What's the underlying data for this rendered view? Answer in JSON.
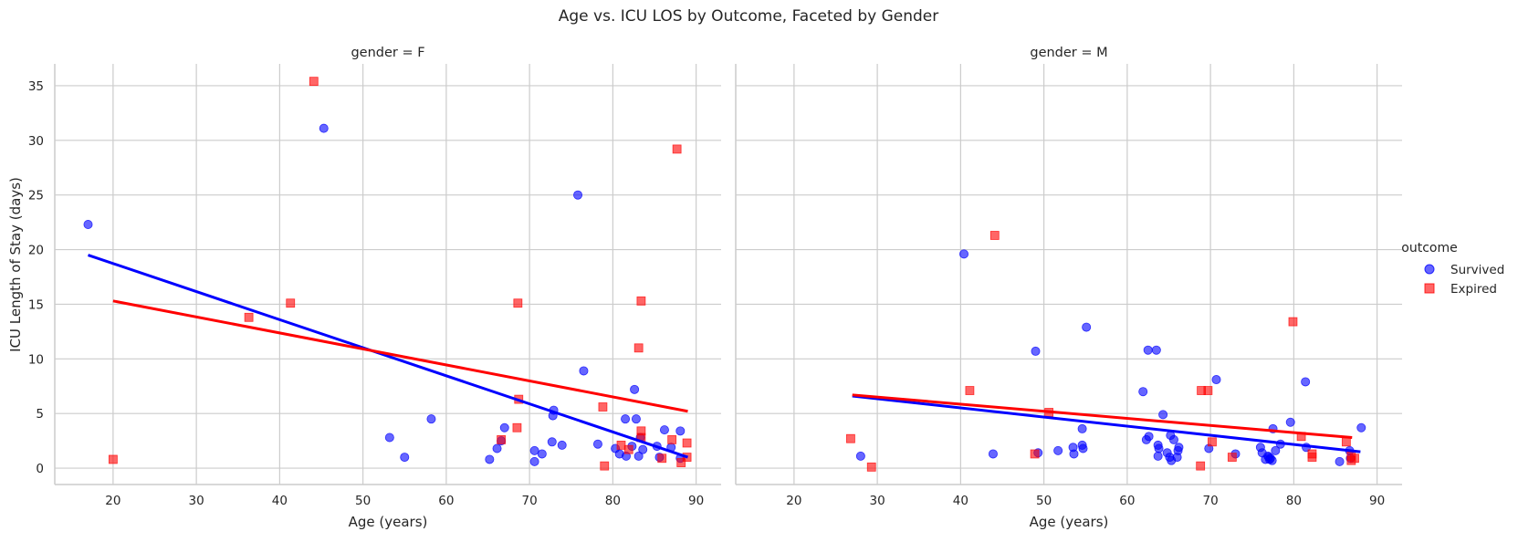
{
  "title": "Age vs. ICU LOS by Outcome, Faceted by Gender",
  "ylabel": "ICU Length of Stay (days)",
  "legend": {
    "title": "outcome",
    "entries": [
      {
        "label": "Survived",
        "color": "#0000ff",
        "marker": "circle"
      },
      {
        "label": "Expired",
        "color": "#ff0000",
        "marker": "square"
      }
    ]
  },
  "colors": {
    "survived": "#0000ff",
    "expired": "#ff0000",
    "grid": "#cccccc",
    "axis": "#cccccc"
  },
  "chart_data": [
    {
      "type": "scatter",
      "title": "gender = F",
      "xlabel": "Age (years)",
      "xlim": [
        13,
        93
      ],
      "ylim": [
        -1.5,
        37
      ],
      "xticks": [
        20,
        30,
        40,
        50,
        60,
        70,
        80,
        90
      ],
      "yticks": [
        0,
        5,
        10,
        15,
        20,
        25,
        30,
        35
      ],
      "grid": true,
      "series": [
        {
          "name": "Survived",
          "points": [
            [
              17,
              22.3
            ],
            [
              45.3,
              31.1
            ],
            [
              53.2,
              2.8
            ],
            [
              55,
              1
            ],
            [
              58.2,
              4.5
            ],
            [
              65.2,
              0.8
            ],
            [
              66.1,
              1.8
            ],
            [
              66.6,
              2.5
            ],
            [
              67,
              3.7
            ],
            [
              70.6,
              1.6
            ],
            [
              70.6,
              0.6
            ],
            [
              71.5,
              1.3
            ],
            [
              72.7,
              2.4
            ],
            [
              72.8,
              4.8
            ],
            [
              72.9,
              5.3
            ],
            [
              73.9,
              2.1
            ],
            [
              75.8,
              25
            ],
            [
              76.5,
              8.9
            ],
            [
              78.2,
              2.2
            ],
            [
              80.3,
              1.8
            ],
            [
              80.8,
              1.3
            ],
            [
              81.5,
              4.5
            ],
            [
              81.6,
              1.1
            ],
            [
              82.3,
              2
            ],
            [
              82.6,
              7.2
            ],
            [
              82.8,
              4.5
            ],
            [
              83.1,
              1.1
            ],
            [
              83.3,
              2.8
            ],
            [
              83.6,
              1.7
            ],
            [
              85.3,
              2
            ],
            [
              85.6,
              1
            ],
            [
              86.2,
              3.5
            ],
            [
              87,
              1.9
            ],
            [
              88.1,
              3.4
            ],
            [
              88.1,
              0.9
            ]
          ],
          "regression": [
            [
              17,
              19.5
            ],
            [
              89,
              1
            ]
          ]
        },
        {
          "name": "Expired",
          "points": [
            [
              20,
              0.8
            ],
            [
              36.3,
              13.8
            ],
            [
              41.3,
              15.1
            ],
            [
              44.1,
              35.4
            ],
            [
              66.6,
              2.6
            ],
            [
              68.5,
              3.7
            ],
            [
              68.6,
              15.1
            ],
            [
              68.7,
              6.3
            ],
            [
              78.8,
              5.6
            ],
            [
              79,
              0.2
            ],
            [
              81,
              2.1
            ],
            [
              81.9,
              1.7
            ],
            [
              83.1,
              11
            ],
            [
              83.4,
              15.3
            ],
            [
              83.4,
              3.4
            ],
            [
              83.4,
              2.8
            ],
            [
              85.9,
              0.9
            ],
            [
              87.1,
              2.6
            ],
            [
              87.7,
              29.2
            ],
            [
              88.2,
              0.5
            ],
            [
              88.9,
              1
            ],
            [
              88.9,
              2.3
            ]
          ],
          "regression": [
            [
              20,
              15.3
            ],
            [
              89,
              5.2
            ]
          ]
        }
      ]
    },
    {
      "type": "scatter",
      "title": "gender = M",
      "xlabel": "Age (years)",
      "xlim": [
        13,
        93
      ],
      "ylim": [
        -1.5,
        37
      ],
      "xticks": [
        20,
        30,
        40,
        50,
        60,
        70,
        80,
        90
      ],
      "yticks": [
        0,
        5,
        10,
        15,
        20,
        25,
        30,
        35
      ],
      "grid": true,
      "series": [
        {
          "name": "Survived",
          "points": [
            [
              28,
              1.1
            ],
            [
              40.4,
              19.6
            ],
            [
              43.9,
              1.3
            ],
            [
              49,
              10.7
            ],
            [
              49.3,
              1.4
            ],
            [
              51.7,
              1.6
            ],
            [
              53.5,
              1.9
            ],
            [
              53.6,
              1.3
            ],
            [
              54.6,
              3.6
            ],
            [
              54.6,
              2.1
            ],
            [
              54.7,
              1.8
            ],
            [
              55.1,
              12.9
            ],
            [
              61.9,
              7
            ],
            [
              62.3,
              2.6
            ],
            [
              62.5,
              10.8
            ],
            [
              62.6,
              2.9
            ],
            [
              63.5,
              10.8
            ],
            [
              63.7,
              1.1
            ],
            [
              63.7,
              2.1
            ],
            [
              63.8,
              1.8
            ],
            [
              64.3,
              4.9
            ],
            [
              64.8,
              1.4
            ],
            [
              65.1,
              1
            ],
            [
              65.2,
              3
            ],
            [
              65.3,
              0.7
            ],
            [
              65.6,
              2.6
            ],
            [
              66,
              1
            ],
            [
              66.1,
              1.6
            ],
            [
              66.2,
              1.9
            ],
            [
              69.8,
              1.8
            ],
            [
              70.7,
              8.1
            ],
            [
              73,
              1.3
            ],
            [
              76,
              1.9
            ],
            [
              76.2,
              1.4
            ],
            [
              76.6,
              0.8
            ],
            [
              76.9,
              1.1
            ],
            [
              77,
              1
            ],
            [
              77.1,
              0.8
            ],
            [
              77.2,
              0.9
            ],
            [
              77.4,
              0.7
            ],
            [
              77.5,
              3.6
            ],
            [
              77.8,
              1.6
            ],
            [
              78.4,
              2.2
            ],
            [
              79.6,
              4.2
            ],
            [
              81.4,
              7.9
            ],
            [
              81.5,
              1.9
            ],
            [
              85.5,
              0.6
            ],
            [
              86.7,
              1.6
            ],
            [
              86.8,
              0.9
            ],
            [
              88.1,
              3.7
            ]
          ],
          "regression": [
            [
              27,
              6.6
            ],
            [
              88,
              1.5
            ]
          ]
        },
        {
          "name": "Expired",
          "points": [
            [
              26.8,
              2.7
            ],
            [
              29.3,
              0.1
            ],
            [
              41.1,
              7.1
            ],
            [
              44.1,
              21.3
            ],
            [
              48.9,
              1.3
            ],
            [
              50.6,
              5.1
            ],
            [
              68.8,
              0.2
            ],
            [
              68.9,
              7.1
            ],
            [
              69.7,
              7.1
            ],
            [
              70.2,
              2.4
            ],
            [
              72.6,
              1
            ],
            [
              79.9,
              13.4
            ],
            [
              80.9,
              2.9
            ],
            [
              82.2,
              1
            ],
            [
              82.2,
              1.3
            ],
            [
              86.3,
              2.4
            ],
            [
              86.9,
              0.7
            ],
            [
              86.9,
              1.1
            ],
            [
              87.3,
              0.9
            ]
          ],
          "regression": [
            [
              27,
              6.7
            ],
            [
              87,
              2.8
            ]
          ]
        }
      ]
    }
  ]
}
